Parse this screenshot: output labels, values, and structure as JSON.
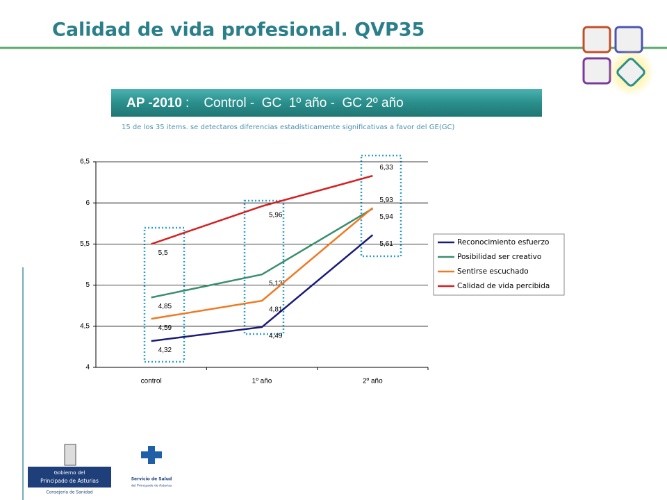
{
  "slide": {
    "title": "Calidad de vida profesional. QVP35",
    "banner_label": "AP -2010",
    "banner_text": ":    Control -  GC  1º año -  GC 2º año",
    "note": "15 de los 35 items. se detectaros diferencias estadísticamente significativas a favor del GE(GC)",
    "logo_left": [
      "Gobierno del",
      "Principado de Asturias",
      "Consejería de Sanidad"
    ],
    "logo_right": [
      "Servicio de Salud",
      "del Principado de Asturias"
    ]
  },
  "chart_data": {
    "type": "line",
    "categories": [
      "control",
      "1º año",
      "2º año"
    ],
    "series": [
      {
        "name": "Reconocimiento esfuerzo",
        "color": "#1a1a7a",
        "values": [
          4.32,
          4.49,
          5.61
        ],
        "value_labels": [
          "4,32",
          "4,49",
          "5,61"
        ]
      },
      {
        "name": "Posibilidad ser creativo",
        "color": "#3a8f6f",
        "values": [
          4.85,
          5.13,
          5.93
        ],
        "value_labels": [
          "4,85",
          "5,13",
          "5,93"
        ]
      },
      {
        "name": "Sentirse escuchado",
        "color": "#f07820",
        "values": [
          4.59,
          4.81,
          5.94
        ],
        "value_labels": [
          "4,59",
          "4,81",
          "5,94"
        ]
      },
      {
        "name": "Calidad de vida percibida",
        "color": "#d42020",
        "values": [
          5.5,
          5.96,
          6.33
        ],
        "value_labels": [
          "5,5",
          "5,96",
          "6,33"
        ]
      }
    ],
    "ylim": [
      4,
      6.5
    ],
    "yticks": [
      4,
      {
        "value": 4.5,
        "label": "4,5"
      },
      5,
      {
        "value": 5.5,
        "label": "5,5"
      },
      6,
      {
        "value": 6.5,
        "label": "6,5"
      }
    ],
    "grid": true,
    "legend": "right"
  }
}
